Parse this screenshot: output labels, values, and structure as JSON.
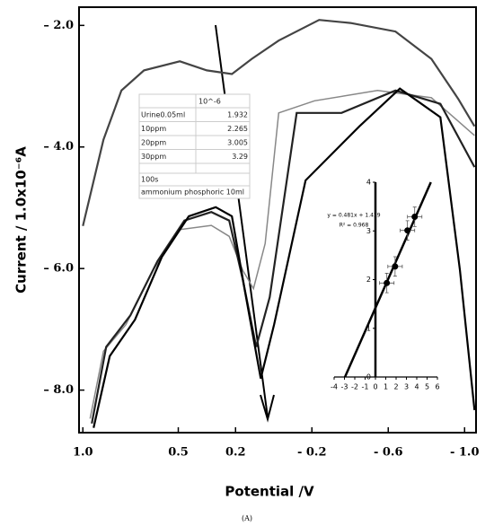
{
  "chart_data": [
    {
      "type": "line",
      "x_label": "Potential /V",
      "y_label": "Current / 1.0x10⁻⁶A",
      "caption": "(A)",
      "xlim": [
        1.02,
        -1.06
      ],
      "ylim": [
        -8.7,
        -1.7
      ],
      "xticks": [
        {
          "value": 1,
          "label": "1.0"
        },
        {
          "value": 0.5,
          "label": "0.5"
        },
        {
          "value": 0.2,
          "label": "0.2"
        },
        {
          "value": -0.2,
          "label": "- 0.2"
        },
        {
          "value": -0.6,
          "label": "- 0.6"
        },
        {
          "value": -1,
          "label": "- 1.0"
        }
      ],
      "yticks": [
        {
          "value": -2,
          "label": "– 2.0"
        },
        {
          "value": -4,
          "label": "– 4.0"
        },
        {
          "value": -6,
          "label": "– 6.0"
        },
        {
          "value": -8,
          "label": "– 8.0"
        }
      ],
      "series": [
        {
          "name": "Urine0.05ml",
          "color": "#444444",
          "x": [
            1.0,
            0.892,
            0.798,
            0.68,
            0.492,
            0.351,
            0.219,
            0.115,
            -0.026,
            -0.238,
            -0.402,
            -0.638,
            -0.826,
            -0.967,
            -1.052
          ],
          "values": [
            -5.3,
            -3.88,
            -3.07,
            -2.74,
            -2.59,
            -2.74,
            -2.8,
            -2.55,
            -2.25,
            -1.91,
            -1.96,
            -2.1,
            -2.55,
            -3.21,
            -3.66
          ]
        },
        {
          "name": "10ppm",
          "color": "#888888",
          "x": [
            0.962,
            0.892,
            0.774,
            0.633,
            0.492,
            0.327,
            0.233,
            0.162,
            0.106,
            0.045,
            -0.026,
            -0.214,
            -0.544,
            -0.826,
            -1.052
          ],
          "values": [
            -8.47,
            -7.36,
            -6.92,
            -6.03,
            -5.36,
            -5.29,
            -5.47,
            -6.03,
            -6.33,
            -5.59,
            -3.44,
            -3.24,
            -3.07,
            -3.19,
            -3.81
          ]
        },
        {
          "name": "20ppm",
          "color": "#222222",
          "x": [
            0.953,
            0.878,
            0.751,
            0.609,
            0.468,
            0.327,
            0.233,
            0.162,
            0.092,
            0.021,
            -0.12,
            -0.355,
            -0.638,
            -0.873,
            -1.052
          ],
          "values": [
            -8.55,
            -7.29,
            -6.77,
            -5.88,
            -5.21,
            -5.07,
            -5.21,
            -6.18,
            -7.29,
            -6.47,
            -3.44,
            -3.44,
            -3.07,
            -3.29,
            -4.33
          ]
        },
        {
          "name": "30ppm",
          "color": "#000000",
          "x": [
            0.944,
            0.859,
            0.727,
            0.586,
            0.445,
            0.304,
            0.219,
            0.153,
            0.068,
            -0.002,
            -0.167,
            -0.449,
            -0.661,
            -0.873,
            -0.976,
            -1.052
          ],
          "values": [
            -8.62,
            -7.44,
            -6.84,
            -5.81,
            -5.14,
            -4.99,
            -5.14,
            -6.33,
            -7.81,
            -6.92,
            -4.55,
            -3.66,
            -3.04,
            -3.51,
            -6.03,
            -8.33
          ]
        }
      ],
      "table": {
        "header": "10^-6",
        "rows": [
          [
            "Urine0.05ml",
            "1.932"
          ],
          [
            "10ppm",
            "2.265"
          ],
          [
            "20ppm",
            "3.005"
          ],
          [
            "30ppm",
            "3.29"
          ]
        ],
        "notes": [
          "100s",
          "ammonium phosphoric 10ml"
        ]
      }
    },
    {
      "type": "scatter",
      "xlim": [
        -4,
        6
      ],
      "ylim": [
        0,
        4
      ],
      "xticks": [
        -4,
        -3,
        -2,
        -1,
        0,
        1,
        2,
        3,
        4,
        5,
        6
      ],
      "yticks": [
        0,
        1,
        2,
        3,
        4
      ],
      "x": [
        1.1,
        1.9,
        3.1,
        3.8
      ],
      "values": [
        1.93,
        2.27,
        3.01,
        3.29
      ],
      "x_err": [
        0.7,
        0.7,
        0.7,
        0.7
      ],
      "y_err": [
        0.2,
        0.2,
        0.2,
        0.2
      ],
      "color": "#000000",
      "fit": {
        "slope": 0.481,
        "intercept": 1.419
      },
      "fit_label": "y = 0.481x + 1.419",
      "r2_label": "R² = 0.968"
    }
  ]
}
